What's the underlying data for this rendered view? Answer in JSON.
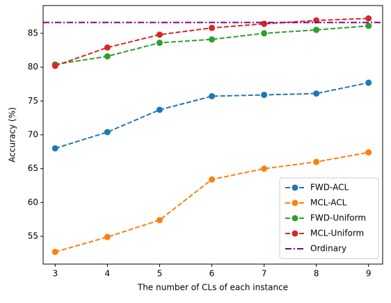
{
  "chart_data": {
    "type": "line",
    "xlabel": "The number of CLs of each instance",
    "ylabel": "Accuracy (%)",
    "x": [
      3,
      4,
      5,
      6,
      7,
      8,
      9
    ],
    "series": [
      {
        "name": "FWD-ACL",
        "color": "#1f77b4",
        "values": [
          68.0,
          70.4,
          73.7,
          75.7,
          75.9,
          76.1,
          77.7
        ]
      },
      {
        "name": "MCL-ACL",
        "color": "#ff7f0e",
        "values": [
          52.7,
          54.9,
          57.4,
          63.4,
          65.0,
          66.0,
          67.4
        ]
      },
      {
        "name": "FWD-Uniform",
        "color": "#2ca02c",
        "values": [
          80.4,
          81.6,
          83.6,
          84.1,
          85.0,
          85.5,
          86.1
        ]
      },
      {
        "name": "MCL-Uniform",
        "color": "#d62728",
        "values": [
          80.2,
          82.9,
          84.8,
          85.8,
          86.4,
          86.9,
          87.2
        ]
      }
    ],
    "reference": {
      "name": "Ordinary",
      "color": "#800080",
      "value": 86.6
    },
    "xlim": [
      2.77,
      9.27
    ],
    "ylim": [
      50.9,
      89.1
    ],
    "xticks": [
      3,
      4,
      5,
      6,
      7,
      8,
      9
    ],
    "yticks": [
      55,
      60,
      65,
      70,
      75,
      80,
      85
    ],
    "legend": "lower right"
  }
}
